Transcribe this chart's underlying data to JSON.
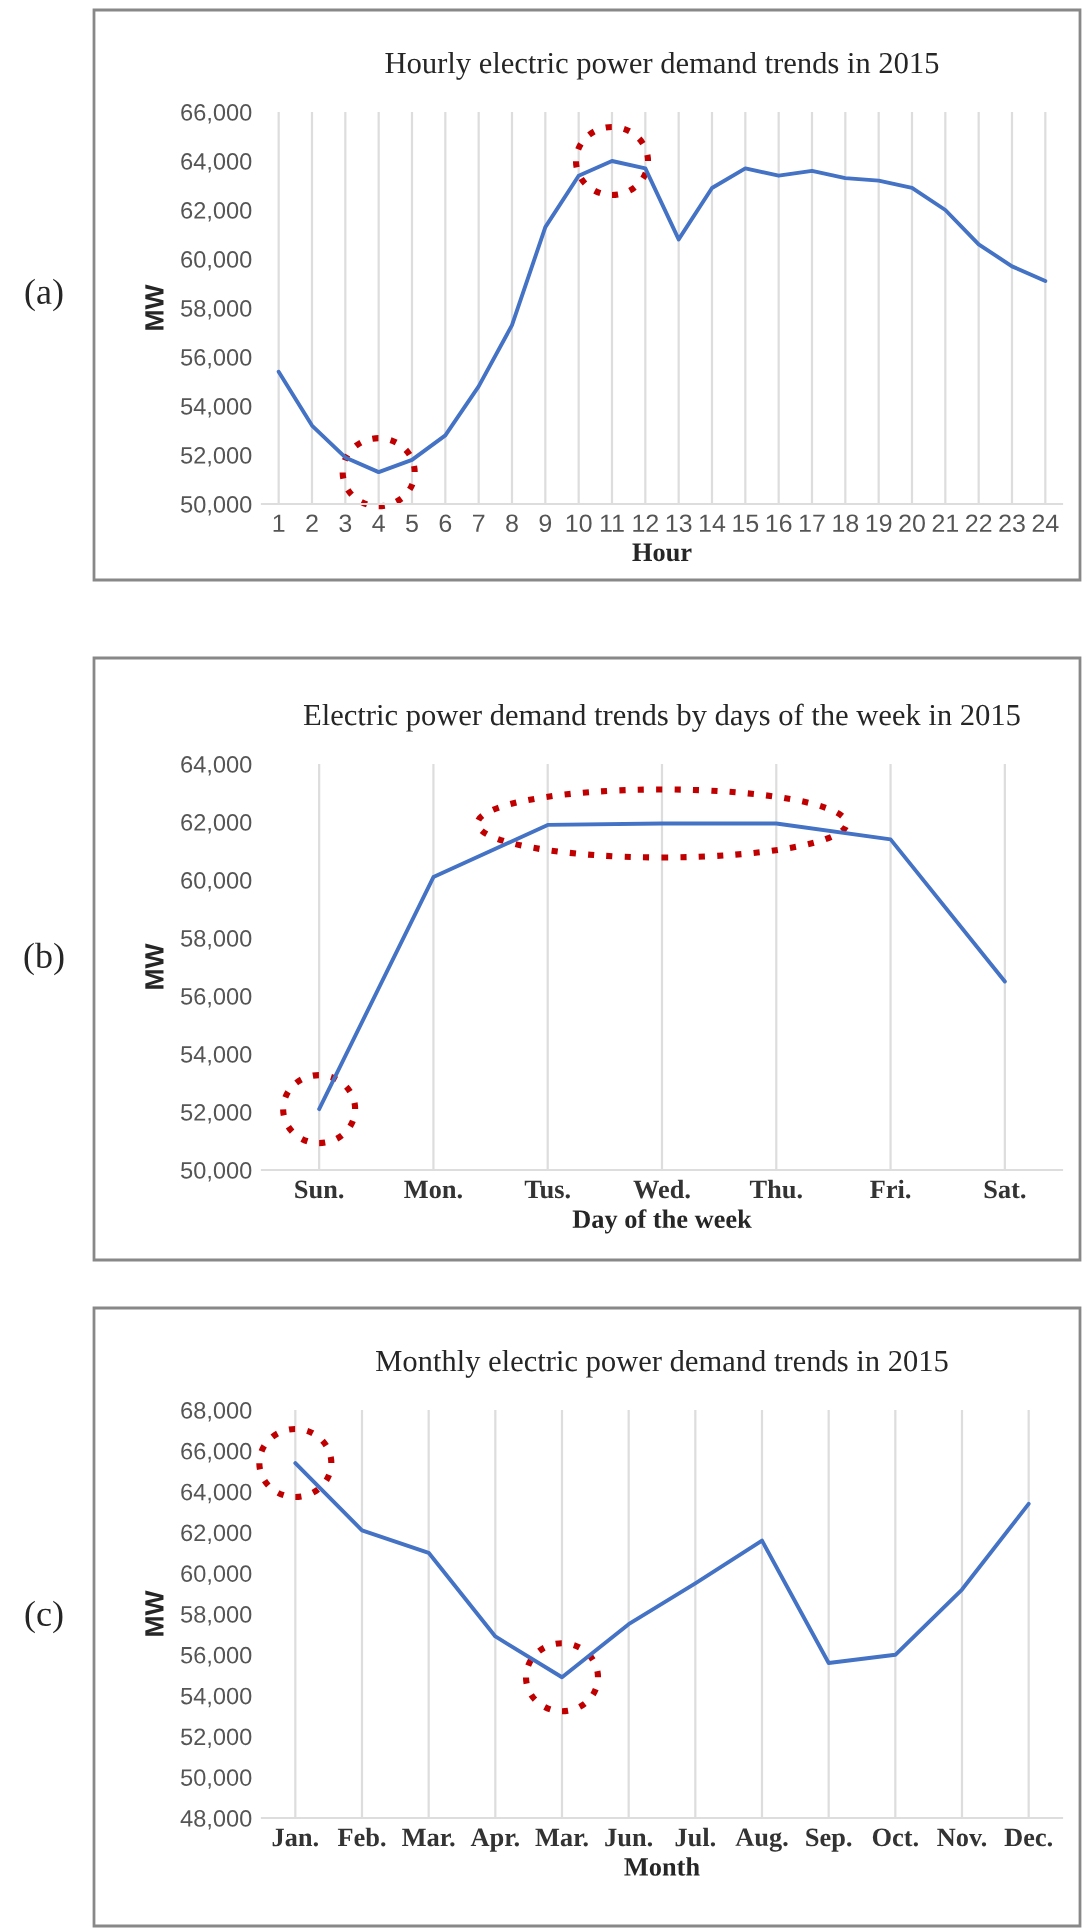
{
  "chart_data": [
    {
      "type": "line",
      "title": "Hourly electric power demand trends in 2015",
      "xlabel": "Hour",
      "ylabel": "MW",
      "annotations": [
        "(a)"
      ],
      "categories": [
        "1",
        "2",
        "3",
        "4",
        "5",
        "6",
        "7",
        "8",
        "9",
        "10",
        "11",
        "12",
        "13",
        "14",
        "15",
        "16",
        "17",
        "18",
        "19",
        "20",
        "21",
        "22",
        "23",
        "24"
      ],
      "series": [
        {
          "color": "#4472c4",
          "values": [
            55400,
            53200,
            51900,
            51300,
            51800,
            52800,
            54800,
            57300,
            61300,
            63400,
            64000,
            63700,
            60800,
            62900,
            63700,
            63400,
            63600,
            63300,
            63200,
            62900,
            62000,
            60600,
            59700,
            59100
          ]
        }
      ],
      "ylim": [
        50000,
        66000
      ],
      "yticks": [
        {
          "value": 50000,
          "label": "50,000"
        },
        {
          "value": 52000,
          "label": "52,000"
        },
        {
          "value": 54000,
          "label": "54,000"
        },
        {
          "value": 56000,
          "label": "56,000"
        },
        {
          "value": 58000,
          "label": "58,000"
        },
        {
          "value": 60000,
          "label": "60,000"
        },
        {
          "value": 62000,
          "label": "62,000"
        },
        {
          "value": 64000,
          "label": "64,000"
        },
        {
          "value": 66000,
          "label": "66,000"
        }
      ],
      "grid": "x",
      "legend": false,
      "marker": "none",
      "line_style": "solid"
    },
    {
      "type": "line",
      "title": "Electric power demand trends by days of the week in 2015",
      "xlabel": "Day of the week",
      "ylabel": "MW",
      "annotations": [
        "(b)"
      ],
      "categories": [
        "Sun.",
        "Mon.",
        "Tus.",
        "Wed.",
        "Thu.",
        "Fri.",
        "Sat."
      ],
      "series": [
        {
          "color": "#4472c4",
          "values": [
            52100,
            60100,
            61900,
            61950,
            61950,
            61400,
            56500
          ]
        }
      ],
      "ylim": [
        50000,
        64000
      ],
      "yticks": [
        {
          "value": 50000,
          "label": "50,000"
        },
        {
          "value": 52000,
          "label": "52,000"
        },
        {
          "value": 54000,
          "label": "54,000"
        },
        {
          "value": 56000,
          "label": "56,000"
        },
        {
          "value": 58000,
          "label": "58,000"
        },
        {
          "value": 60000,
          "label": "60,000"
        },
        {
          "value": 62000,
          "label": "62,000"
        },
        {
          "value": 64000,
          "label": "64,000"
        }
      ],
      "grid": "x",
      "legend": false,
      "marker": "none",
      "line_style": "solid"
    },
    {
      "type": "line",
      "title": "Monthly electric power demand trends in 2015",
      "xlabel": "Month",
      "ylabel": "MW",
      "annotations": [
        "(c)"
      ],
      "categories": [
        "Jan.",
        "Feb.",
        "Mar.",
        "Apr.",
        "Mar.",
        "Jun.",
        "Jul.",
        "Aug.",
        "Sep.",
        "Oct.",
        "Nov.",
        "Dec."
      ],
      "series": [
        {
          "color": "#4472c4",
          "values": [
            65400,
            62100,
            61000,
            56900,
            54900,
            57500,
            59500,
            61600,
            55600,
            56000,
            59200,
            63400
          ]
        }
      ],
      "ylim": [
        48000,
        68000
      ],
      "yticks": [
        {
          "value": 48000,
          "label": "48,000"
        },
        {
          "value": 50000,
          "label": "50,000"
        },
        {
          "value": 52000,
          "label": "52,000"
        },
        {
          "value": 54000,
          "label": "54,000"
        },
        {
          "value": 56000,
          "label": "56,000"
        },
        {
          "value": 58000,
          "label": "58,000"
        },
        {
          "value": 60000,
          "label": "60,000"
        },
        {
          "value": 62000,
          "label": "62,000"
        },
        {
          "value": 64000,
          "label": "64,000"
        },
        {
          "value": 66000,
          "label": "66,000"
        },
        {
          "value": 68000,
          "label": "68,000"
        }
      ],
      "grid": "x",
      "legend": false,
      "marker": "none",
      "line_style": "solid"
    }
  ]
}
